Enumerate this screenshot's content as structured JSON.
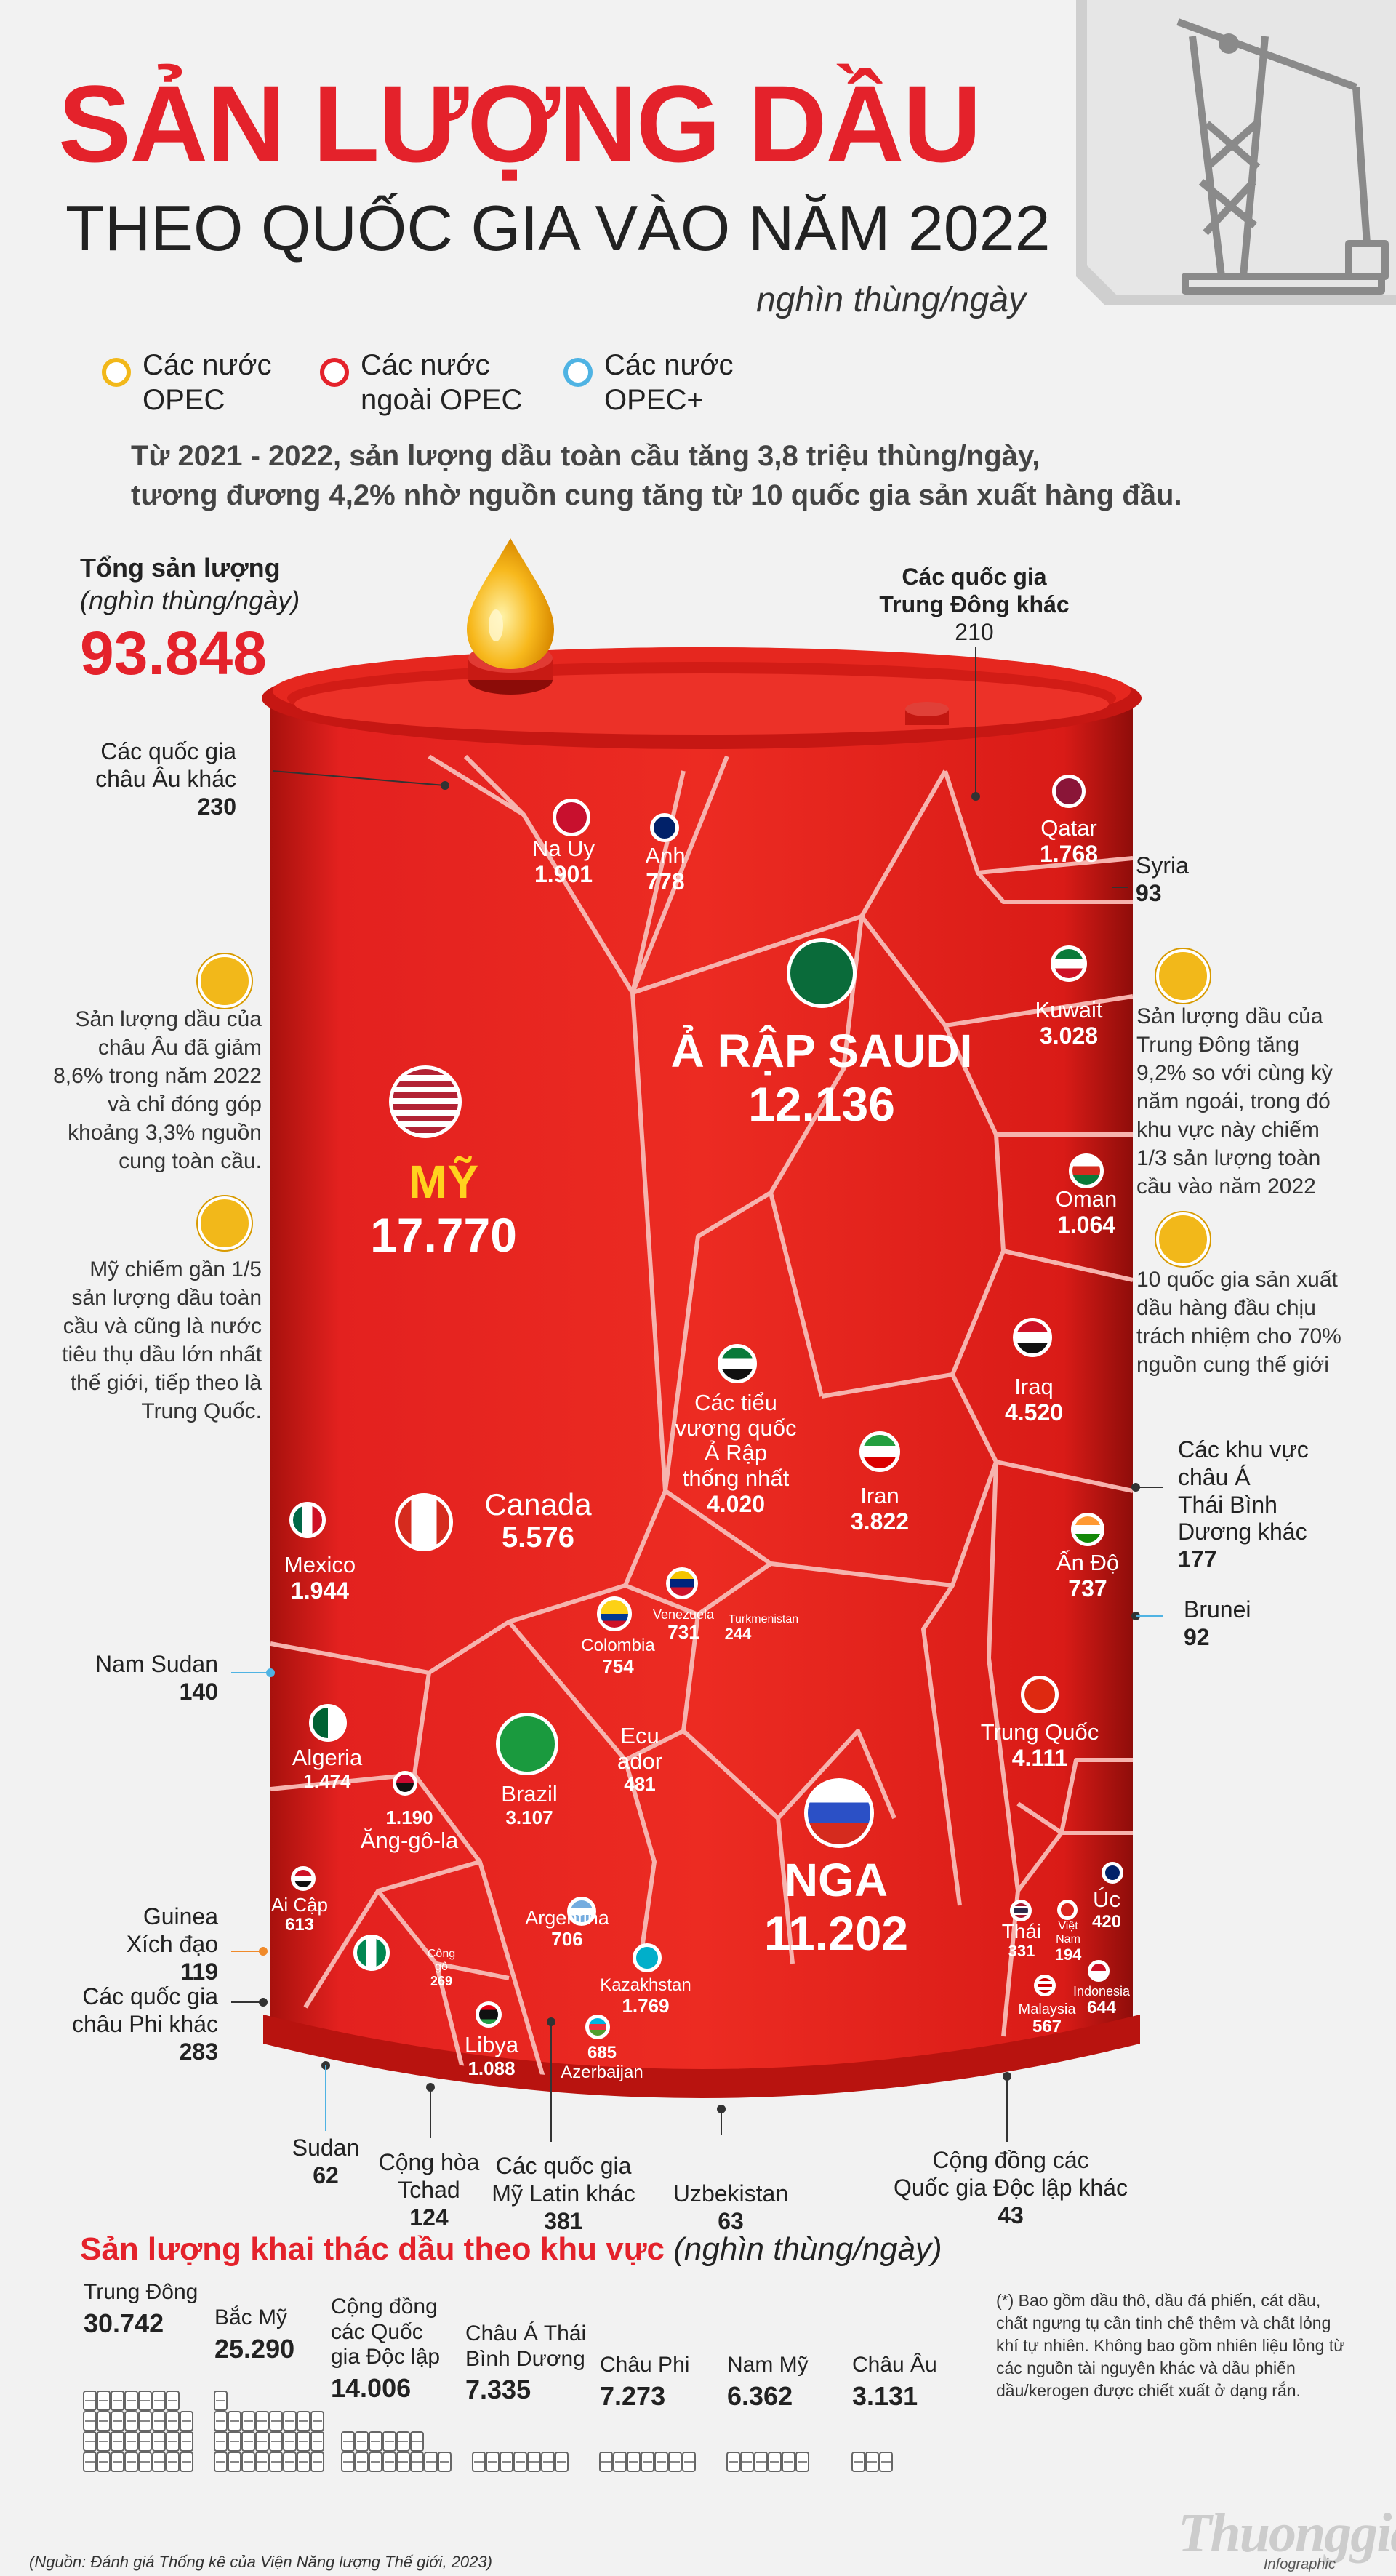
{
  "title": "SẢN LƯỢNG DẦU",
  "subtitle": "THEO QUỐC GIA VÀO NĂM 2022",
  "unit": "nghìn thùng/ngày",
  "legend": [
    {
      "label_line1": "Các nước",
      "label_line2": "OPEC",
      "color": "#f2b81a"
    },
    {
      "label_line1": "Các nước",
      "label_line2": "ngoài OPEC",
      "color": "#e4222b"
    },
    {
      "label_line1": "Các nước",
      "label_line2": "OPEC+",
      "color": "#4fb3e3"
    }
  ],
  "intro_line1": "Từ 2021 - 2022, sản lượng dầu toàn cầu tăng 3,8 triệu thùng/ngày,",
  "intro_line2": "tương đương 4,2% nhờ nguồn cung tăng từ 10 quốc gia sản xuất hàng đầu.",
  "total": {
    "label": "Tổng sản lượng",
    "sub": "(nghìn thùng/ngày)",
    "value": "93.848"
  },
  "countries": {
    "saudi": {
      "name": "Ả RẬP SAUDI",
      "value": "12.136"
    },
    "usa": {
      "name": "MỸ",
      "value": "17.770"
    },
    "russia": {
      "name": "NGA",
      "value": "11.202"
    },
    "canada": {
      "name": "Canada",
      "value": "5.576"
    },
    "norway": {
      "name": "Na Uy",
      "value": "1.901"
    },
    "uk": {
      "name": "Anh",
      "value": "778"
    },
    "qatar": {
      "name": "Qatar",
      "value": "1.768"
    },
    "kuwait": {
      "name": "Kuwait",
      "value": "3.028"
    },
    "oman": {
      "name": "Oman",
      "value": "1.064"
    },
    "iraq": {
      "name": "Iraq",
      "value": "4.520"
    },
    "uae": {
      "name1": "Các tiểu",
      "name2": "vương quốc",
      "name3": "Ả Rập",
      "name4": "thống nhất",
      "value": "4.020"
    },
    "iran": {
      "name": "Iran",
      "value": "3.822"
    },
    "india": {
      "name": "Ấn Độ",
      "value": "737"
    },
    "china": {
      "name": "Trung Quốc",
      "value": "4.111"
    },
    "mexico": {
      "name": "Mexico",
      "value": "1.944"
    },
    "colombia": {
      "name": "Colombia",
      "value": "754"
    },
    "venezuela": {
      "name": "Venezuela",
      "value": "731"
    },
    "turkmenistan": {
      "name": "Turkmenistan",
      "value": "244"
    },
    "algeria": {
      "name": "Algeria",
      "value": "1.474"
    },
    "angola": {
      "name": "Ăng-gô-la",
      "value": "1.190"
    },
    "brazil": {
      "name": "Brazil",
      "value": "3.107"
    },
    "ecuador": {
      "name1": "Ecu",
      "name2": "ador",
      "value": "481"
    },
    "egypt": {
      "name": "Ai Cập",
      "value": "613"
    },
    "congo": {
      "name1": "Công",
      "name2": "gô",
      "value": "269"
    },
    "argentina": {
      "name": "Argentina",
      "value": "706"
    },
    "kazakhstan": {
      "name": "Kazakhstan",
      "value": "1.769"
    },
    "libya": {
      "name": "Libya",
      "value": "1.088"
    },
    "azerbaijan": {
      "name": "Azerbaijan",
      "value": "685"
    },
    "australia": {
      "name": "Úc",
      "value": "420"
    },
    "thailand": {
      "name": "Thái",
      "value": "331"
    },
    "vietnam": {
      "name1": "Việt",
      "name2": "Nam",
      "value": "194"
    },
    "indonesia": {
      "name": "Indonesia",
      "value": "644"
    },
    "malaysia": {
      "name": "Malaysia",
      "value": "567"
    }
  },
  "callouts": {
    "europe_other": {
      "l1": "Các quốc gia",
      "l2": "châu Âu khác",
      "value": "230"
    },
    "middle_east_other": {
      "l1": "Các quốc gia",
      "l2": "Trung Đông khác",
      "value": "210"
    },
    "syria": {
      "name": "Syria",
      "value": "93"
    },
    "asia_pacific_other": {
      "l1": "Các khu vực",
      "l2": "châu Á",
      "l3": "Thái Bình",
      "l4": "Dương khác",
      "value": "177"
    },
    "brunei": {
      "name": "Brunei",
      "value": "92"
    },
    "south_sudan": {
      "name": "Nam Sudan",
      "value": "140"
    },
    "eq_guinea": {
      "l1": "Guinea",
      "l2": "Xích đạo",
      "value": "119"
    },
    "africa_other": {
      "l1": "Các quốc gia",
      "l2": "châu Phi khác",
      "value": "283"
    },
    "sudan": {
      "name": "Sudan",
      "value": "62"
    },
    "chad": {
      "l1": "Cộng hòa",
      "l2": "Tchad",
      "value": "124"
    },
    "latam_other": {
      "l1": "Các quốc gia",
      "l2": "Mỹ Latin khác",
      "value": "381"
    },
    "uzbekistan": {
      "name": "Uzbekistan",
      "value": "63"
    },
    "cis_other": {
      "l1": "Cộng đồng các",
      "l2": "Quốc gia Độc lập khác",
      "value": "43"
    }
  },
  "info": {
    "europe": [
      "Sản lượng dầu của",
      "châu Âu đã giảm",
      "8,6% trong năm 2022",
      "và chỉ đóng góp",
      "khoảng 3,3% nguồn",
      "cung toàn cầu."
    ],
    "usa": [
      "Mỹ chiếm gần 1/5",
      "sản lượng dầu toàn",
      "cầu và cũng là nước",
      "tiêu thụ dầu lớn nhất",
      "thế giới, tiếp theo là",
      "Trung Quốc."
    ],
    "middle_east": [
      "Sản lượng dầu của",
      "Trung Đông tăng",
      "9,2% so với cùng kỳ",
      "năm ngoái, trong đó",
      "khu vực này chiếm",
      "1/3 sản lượng toàn",
      "cầu vào năm 2022"
    ],
    "top10": [
      "10 quốc gia sản xuất",
      "dầu hàng đầu chịu",
      "trách nhiệm cho 70%",
      "nguồn cung thế giới"
    ]
  },
  "regions_title": "Sản lượng khai thác dầu theo khu vực",
  "regions_unit": "(nghìn thùng/ngày)",
  "regions": [
    {
      "l1": "Trung Đông",
      "l2": "",
      "l3": "",
      "value": "30.742",
      "num": 30742
    },
    {
      "l1": "Bắc Mỹ",
      "l2": "",
      "l3": "",
      "value": "25.290",
      "num": 25290
    },
    {
      "l1": "Cộng đồng",
      "l2": "các Quốc",
      "l3": "gia Độc lập",
      "value": "14.006",
      "num": 14006
    },
    {
      "l1": "Châu Á Thái",
      "l2": "Bình Dương",
      "l3": "",
      "value": "7.335",
      "num": 7335
    },
    {
      "l1": "Châu Phi",
      "l2": "",
      "l3": "",
      "value": "7.273",
      "num": 7273
    },
    {
      "l1": "Nam Mỹ",
      "l2": "",
      "l3": "",
      "value": "6.362",
      "num": 6362
    },
    {
      "l1": "Châu Âu",
      "l2": "",
      "l3": "",
      "value": "3.131",
      "num": 3131
    }
  ],
  "footnote": "(*) Bao gồm dầu thô, dầu đá phiến, cát dầu, chất ngưng tụ cần tinh chế thêm và chất lỏng khí tự nhiên. Không bao gồm nhiên liệu lỏng từ các nguồn tài nguyên khác và dầu phiến dầu/kerogen được chiết xuất ở dạng rắn.",
  "source": "(Nguồn: Đánh giá Thống kê của Viện Năng lượng Thế giới, 2023)",
  "brand": "Thuonggia",
  "brand_sub": "Infographic",
  "colors": {
    "accent": "#e4222b",
    "barrel": "#e3211f",
    "barrel_dark": "#b5140f",
    "opec": "#f2b81a",
    "opecplus": "#4fb3e3"
  }
}
